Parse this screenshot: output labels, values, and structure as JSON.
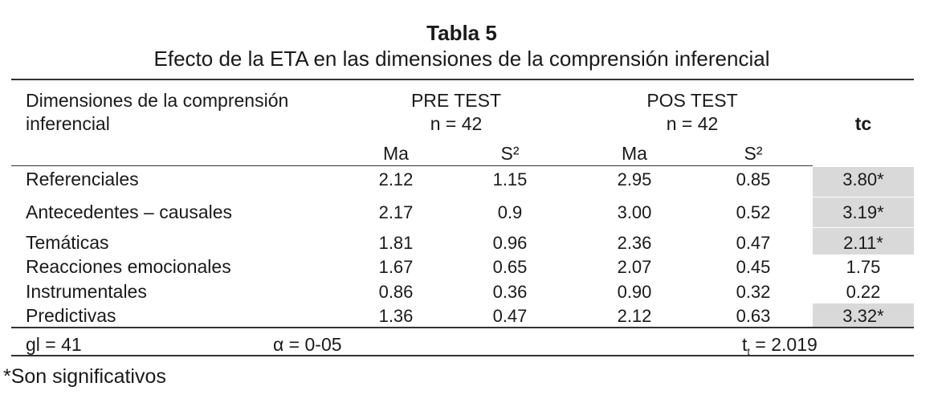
{
  "table": {
    "title": "Tabla 5",
    "subtitle": "Efecto de la ETA en las dimensiones de la comprensión inferencial",
    "header": {
      "dimension_line1": "Dimensiones de la comprensión",
      "dimension_line2": "inferencial",
      "pre_label": "PRE TEST",
      "pre_n": "n = 42",
      "pos_label": "POS TEST",
      "pos_n": "n = 42",
      "tc_label": "tc",
      "ma": "Ma",
      "s2": "S²"
    },
    "rows": [
      {
        "dimension": "Referenciales",
        "pre_ma": "2.12",
        "pre_s2": "1.15",
        "pos_ma": "2.95",
        "pos_s2": "0.85",
        "tc": "3.80*",
        "significant": true
      },
      {
        "dimension": "Antecedentes – causales",
        "pre_ma": "2.17",
        "pre_s2": "0.9",
        "pos_ma": "3.00",
        "pos_s2": "0.52",
        "tc": "3.19*",
        "significant": true
      },
      {
        "dimension": "Temáticas",
        "pre_ma": "1.81",
        "pre_s2": "0.96",
        "pos_ma": "2.36",
        "pos_s2": "0.47",
        "tc": "2.11*",
        "significant": true
      },
      {
        "dimension": "Reacciones emocionales",
        "pre_ma": "1.67",
        "pre_s2": "0.65",
        "pos_ma": "2.07",
        "pos_s2": "0.45",
        "tc": "1.75",
        "significant": false
      },
      {
        "dimension": "Instrumentales",
        "pre_ma": "0.86",
        "pre_s2": "0.36",
        "pos_ma": "0.90",
        "pos_s2": "0.32",
        "tc": "0.22",
        "significant": false
      },
      {
        "dimension": "Predictivas",
        "pre_ma": "1.36",
        "pre_s2": "0.47",
        "pos_ma": "2.12",
        "pos_s2": "0.63",
        "tc": "3.32*",
        "significant": true
      }
    ],
    "footer": {
      "gl": "gl = 41",
      "alpha": "α = 0-05",
      "t_prefix": "t",
      "t_sub": "t",
      "t_value": " = 2.019"
    },
    "note": "*Son significativos",
    "highlight_color": "#d9d9d9"
  }
}
